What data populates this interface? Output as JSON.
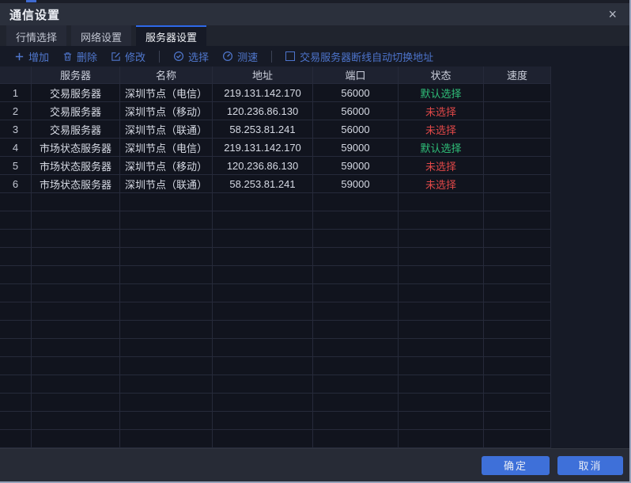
{
  "window": {
    "title": "通信设置",
    "close_icon": "×"
  },
  "tabs": [
    {
      "label": "行情选择"
    },
    {
      "label": "网络设置"
    },
    {
      "label": "服务器设置"
    }
  ],
  "active_tab": "服务器设置",
  "toolbar": {
    "add_label": "增加",
    "delete_label": "删除",
    "modify_label": "修改",
    "select_label": "选择",
    "speedtest_label": "测速",
    "checkbox_label": "交易服务器断线自动切换地址",
    "checkbox_checked": false
  },
  "table": {
    "columns": [
      "",
      "服务器",
      "名称",
      "地址",
      "端口",
      "状态",
      "速度"
    ],
    "rows": [
      {
        "num": "1",
        "server": "交易服务器",
        "name": "深圳节点（电信）",
        "address": "219.131.142.170",
        "port": "56000",
        "status": "默认选择",
        "status_color": "#2fbf79",
        "speed": ""
      },
      {
        "num": "2",
        "server": "交易服务器",
        "name": "深圳节点（移动）",
        "address": "120.236.86.130",
        "port": "56000",
        "status": "未选择",
        "status_color": "#e04848",
        "speed": ""
      },
      {
        "num": "3",
        "server": "交易服务器",
        "name": "深圳节点（联通）",
        "address": "58.253.81.241",
        "port": "56000",
        "status": "未选择",
        "status_color": "#e04848",
        "speed": ""
      },
      {
        "num": "4",
        "server": "市场状态服务器",
        "name": "深圳节点（电信）",
        "address": "219.131.142.170",
        "port": "59000",
        "status": "默认选择",
        "status_color": "#2fbf79",
        "speed": ""
      },
      {
        "num": "5",
        "server": "市场状态服务器",
        "name": "深圳节点（移动）",
        "address": "120.236.86.130",
        "port": "59000",
        "status": "未选择",
        "status_color": "#e04848",
        "speed": ""
      },
      {
        "num": "6",
        "server": "市场状态服务器",
        "name": "深圳节点（联通）",
        "address": "58.253.81.241",
        "port": "59000",
        "status": "未选择",
        "status_color": "#e04848",
        "speed": ""
      }
    ],
    "empty_rows": 14
  },
  "footer": {
    "ok_label": "确定",
    "cancel_label": "取消"
  },
  "colors": {
    "accent_blue": "#2e68e8",
    "toolbar_blue": "#5077cd",
    "button_blue": "#3e70d9",
    "status_green": "#2fbf79",
    "status_red": "#e04848"
  }
}
